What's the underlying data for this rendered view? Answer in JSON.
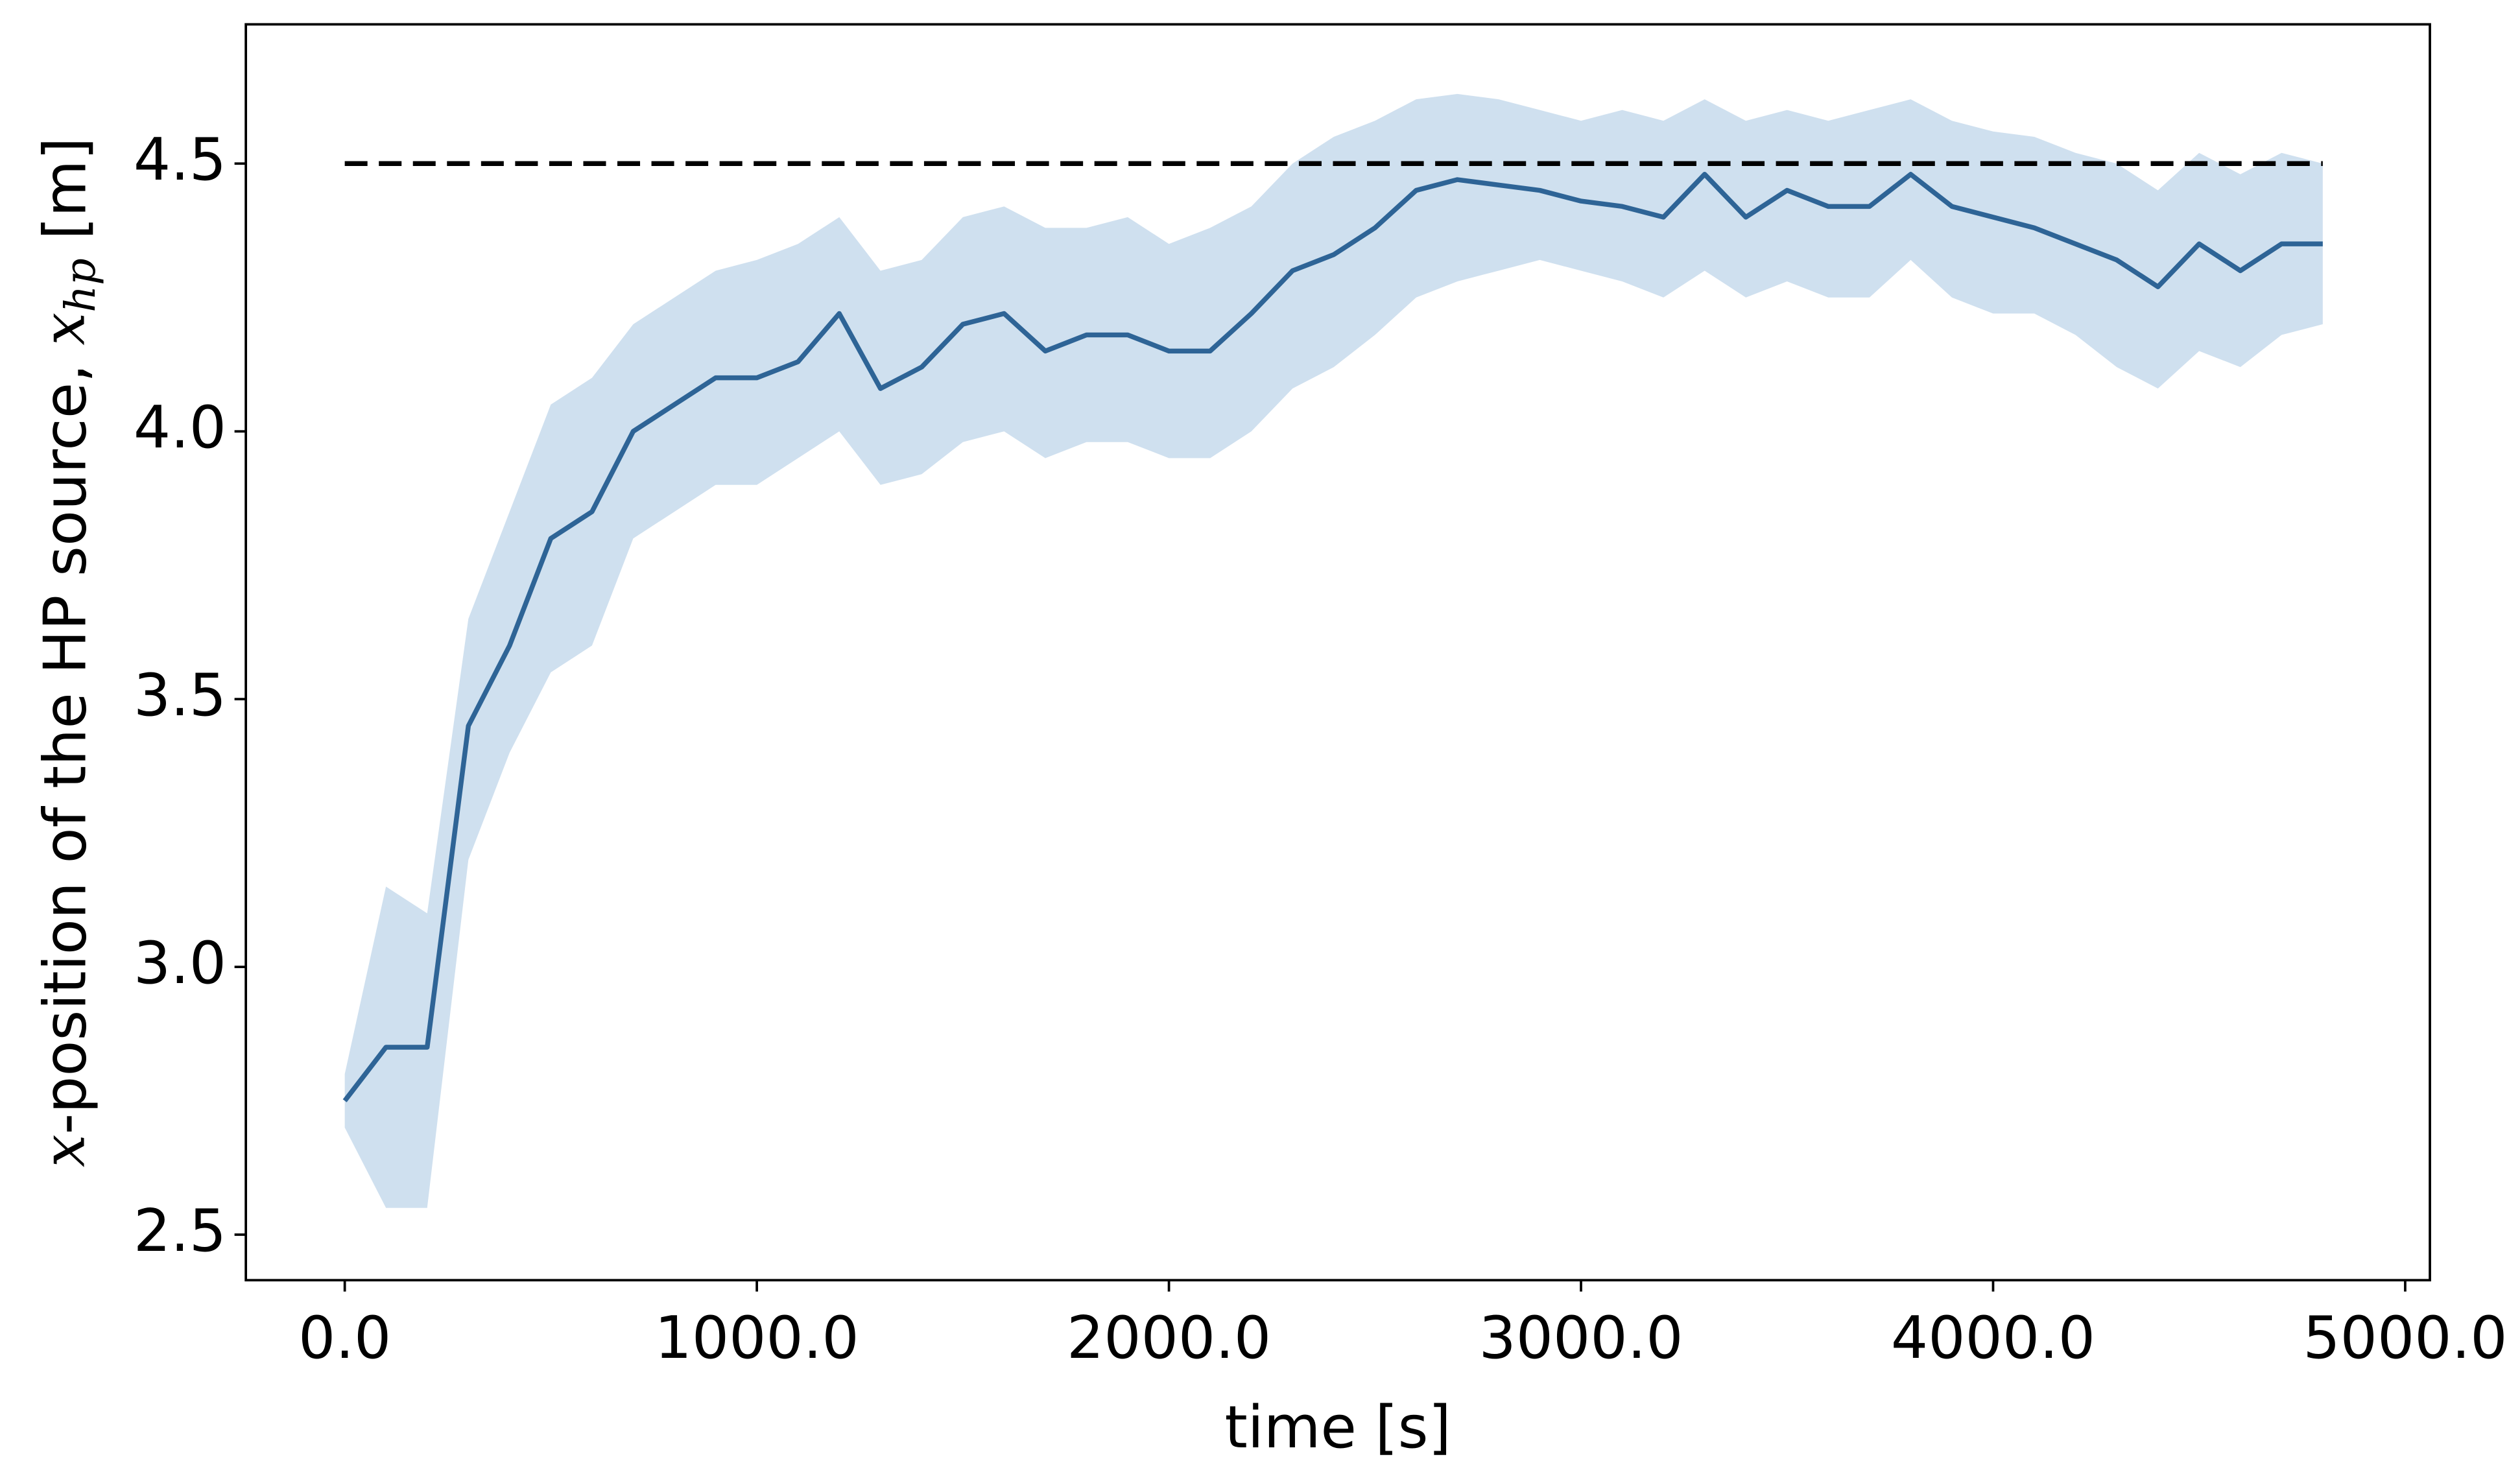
{
  "chart_data": {
    "type": "line",
    "xlabel": "time [s]",
    "ylabel": [
      "x",
      "-position of the HP source, ",
      "x",
      "hp",
      " [m]"
    ],
    "x": [
      0,
      100,
      200,
      300,
      400,
      500,
      600,
      700,
      800,
      900,
      1000,
      1100,
      1200,
      1300,
      1400,
      1500,
      1600,
      1700,
      1800,
      1900,
      2000,
      2100,
      2200,
      2300,
      2400,
      2500,
      2600,
      2700,
      2800,
      2900,
      3000,
      3100,
      3200,
      3300,
      3400,
      3500,
      3600,
      3700,
      3800,
      3900,
      4000,
      4100,
      4200,
      4300,
      4400,
      4500,
      4600,
      4700,
      4800
    ],
    "series": [
      {
        "color": "#2e6496",
        "band_color": "#cfe0ef",
        "values": [
          2.75,
          2.85,
          2.85,
          3.45,
          3.6,
          3.8,
          3.85,
          4.0,
          4.05,
          4.1,
          4.1,
          4.13,
          4.22,
          4.08,
          4.12,
          4.2,
          4.22,
          4.15,
          4.18,
          4.18,
          4.15,
          4.15,
          4.22,
          4.3,
          4.33,
          4.38,
          4.45,
          4.47,
          4.46,
          4.45,
          4.43,
          4.42,
          4.4,
          4.48,
          4.4,
          4.45,
          4.42,
          4.42,
          4.48,
          4.42,
          4.4,
          4.38,
          4.35,
          4.32,
          4.27,
          4.35,
          4.3,
          4.35,
          4.35
        ],
        "lower": [
          2.7,
          2.55,
          2.55,
          3.2,
          3.4,
          3.55,
          3.6,
          3.8,
          3.85,
          3.9,
          3.9,
          3.95,
          4.0,
          3.9,
          3.92,
          3.98,
          4.0,
          3.95,
          3.98,
          3.98,
          3.95,
          3.95,
          4.0,
          4.08,
          4.12,
          4.18,
          4.25,
          4.28,
          4.3,
          4.32,
          4.3,
          4.28,
          4.25,
          4.3,
          4.25,
          4.28,
          4.25,
          4.25,
          4.32,
          4.25,
          4.22,
          4.22,
          4.18,
          4.12,
          4.08,
          4.15,
          4.12,
          4.18,
          4.2
        ],
        "upper": [
          2.8,
          3.15,
          3.1,
          3.65,
          3.85,
          4.05,
          4.1,
          4.2,
          4.25,
          4.3,
          4.32,
          4.35,
          4.4,
          4.3,
          4.32,
          4.4,
          4.42,
          4.38,
          4.38,
          4.4,
          4.35,
          4.38,
          4.42,
          4.5,
          4.55,
          4.58,
          4.62,
          4.63,
          4.62,
          4.6,
          4.58,
          4.6,
          4.58,
          4.62,
          4.58,
          4.6,
          4.58,
          4.6,
          4.62,
          4.58,
          4.56,
          4.55,
          4.52,
          4.5,
          4.45,
          4.52,
          4.48,
          4.52,
          4.5
        ]
      },
      {
        "color": "#000000",
        "dashed": true,
        "values": [
          4.5,
          4.5,
          4.5,
          4.5,
          4.5,
          4.5,
          4.5,
          4.5,
          4.5,
          4.5,
          4.5,
          4.5,
          4.5,
          4.5,
          4.5,
          4.5,
          4.5,
          4.5,
          4.5,
          4.5,
          4.5,
          4.5,
          4.5,
          4.5,
          4.5,
          4.5,
          4.5,
          4.5,
          4.5,
          4.5,
          4.5,
          4.5,
          4.5,
          4.5,
          4.5,
          4.5,
          4.5,
          4.5,
          4.5,
          4.5,
          4.5,
          4.5,
          4.5,
          4.5,
          4.5,
          4.5,
          4.5,
          4.5,
          4.5
        ]
      }
    ],
    "xlim": [
      -240,
      5060
    ],
    "ylim": [
      2.415,
      4.76
    ],
    "xticks": [
      {
        "value": 0,
        "label": "0.0"
      },
      {
        "value": 1000,
        "label": "1000.0"
      },
      {
        "value": 2000,
        "label": "2000.0"
      },
      {
        "value": 3000,
        "label": "3000.0"
      },
      {
        "value": 4000,
        "label": "4000.0"
      },
      {
        "value": 5000,
        "label": "5000.0"
      }
    ],
    "yticks": [
      2.5,
      {
        "value": 3.0,
        "label": "3.0"
      },
      3.5,
      {
        "value": 4.0,
        "label": "4.0"
      },
      4.5
    ],
    "grid": false
  }
}
